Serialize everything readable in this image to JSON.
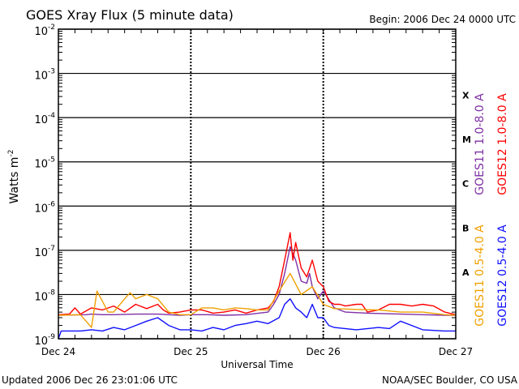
{
  "chart_data": {
    "type": "line",
    "title": "GOES Xray Flux (5 minute data)",
    "begin_label": "Begin:  2006 Dec 24 0000 UTC",
    "ylabel_main": "Watts m",
    "ylabel_exp": "-2",
    "xlabel": "Universal Time",
    "y_scale": "log",
    "ylim": [
      1e-09,
      0.01
    ],
    "xlim": [
      0,
      72
    ],
    "y_ticks": [
      {
        "value": 0.01,
        "base": "10",
        "exp": "-2"
      },
      {
        "value": 0.001,
        "base": "10",
        "exp": "-3"
      },
      {
        "value": 0.0001,
        "base": "10",
        "exp": "-4"
      },
      {
        "value": 1e-05,
        "base": "10",
        "exp": "-5"
      },
      {
        "value": 1e-06,
        "base": "10",
        "exp": "-6"
      },
      {
        "value": 1e-07,
        "base": "10",
        "exp": "-7"
      },
      {
        "value": 1e-08,
        "base": "10",
        "exp": "-8"
      },
      {
        "value": 1e-09,
        "base": "10",
        "exp": "-9"
      }
    ],
    "x_ticks": [
      {
        "hour": 0,
        "label": "Dec 24"
      },
      {
        "hour": 24,
        "label": "Dec 25"
      },
      {
        "hour": 48,
        "label": "Dec 26"
      },
      {
        "hour": 72,
        "label": "Dec 27"
      }
    ],
    "flare_classes": [
      {
        "label": "X",
        "value": 0.00032
      },
      {
        "label": "M",
        "value": 3.2e-05
      },
      {
        "label": "C",
        "value": 3.2e-06
      },
      {
        "label": "B",
        "value": 3.2e-07
      },
      {
        "label": "A",
        "value": 3.2e-08
      }
    ],
    "grid": true,
    "legend": [
      {
        "name": "GOES11 1.0-8.0 A",
        "color": "#7f2fa5"
      },
      {
        "name": "GOES12 1.0-8.0 A",
        "color": "#ff0000"
      },
      {
        "name": "GOES11 0.5-4.0 A",
        "color": "#f0a000"
      },
      {
        "name": "GOES12 0.5-4.0 A",
        "color": "#1010ff"
      }
    ],
    "series": [
      {
        "name": "GOES11 1.0-8.0 A",
        "color": "#7f2fa5",
        "x": [
          0,
          5,
          6,
          8,
          10,
          14,
          18,
          20,
          22,
          24,
          27,
          30,
          34,
          38,
          39,
          40,
          41,
          42,
          43,
          44,
          45,
          45.5,
          46,
          47,
          48,
          50,
          52,
          56,
          62,
          66,
          70,
          72
        ],
        "y": [
          3.4e-09,
          3.5e-09,
          3.6e-09,
          3.5e-09,
          3.5e-09,
          3.6e-09,
          3.6e-09,
          3.5e-09,
          3.4e-09,
          3.5e-09,
          3.5e-09,
          3.4e-09,
          3.5e-09,
          4e-09,
          6e-09,
          1e-08,
          3e-08,
          1.2e-07,
          6e-08,
          2e-08,
          1.8e-08,
          3e-08,
          1.5e-08,
          8e-09,
          1.2e-08,
          5e-09,
          4e-09,
          3.8e-09,
          3.6e-09,
          3.5e-09,
          3.4e-09,
          3.4e-09
        ]
      },
      {
        "name": "GOES12 1.0-8.0 A",
        "color": "#ff0000",
        "x": [
          0,
          2,
          3,
          4,
          6,
          8,
          10,
          12,
          14,
          16,
          18,
          19,
          20,
          22,
          24,
          26,
          28,
          30,
          32,
          34,
          36,
          38,
          39,
          40,
          41,
          42,
          42.5,
          43,
          44,
          45,
          46,
          47,
          48,
          49,
          50,
          51,
          52,
          54,
          55,
          56,
          58,
          60,
          62,
          64,
          66,
          68,
          70,
          72
        ],
        "y": [
          3.5e-09,
          3.6e-09,
          5e-09,
          3.6e-09,
          5e-09,
          4.5e-09,
          5.5e-09,
          4e-09,
          6e-09,
          4.8e-09,
          6e-09,
          4.5e-09,
          3.8e-09,
          4e-09,
          4.5e-09,
          4.5e-09,
          3.8e-09,
          4e-09,
          4.5e-09,
          3.8e-09,
          4.5e-09,
          5e-09,
          7e-09,
          1.5e-08,
          6e-08,
          2.5e-07,
          6e-08,
          1.5e-07,
          4e-08,
          2.5e-08,
          6e-08,
          2e-08,
          1.5e-08,
          7e-09,
          6e-09,
          6e-09,
          5.5e-09,
          6e-09,
          6e-09,
          4e-09,
          4.5e-09,
          6e-09,
          6e-09,
          5.5e-09,
          6e-09,
          5.5e-09,
          4e-09,
          3.5e-09
        ]
      },
      {
        "name": "GOES11 0.5-4.0 A",
        "color": "#f0a000",
        "x": [
          0,
          4,
          6,
          7,
          8,
          9,
          10,
          12,
          13,
          14,
          16,
          18,
          20,
          22,
          24,
          26,
          28,
          30,
          32,
          34,
          36,
          38,
          40,
          42,
          44,
          46,
          48,
          50,
          54,
          58,
          62,
          66,
          70,
          72
        ],
        "y": [
          3.4e-09,
          3.5e-09,
          1.8e-09,
          1.2e-08,
          7e-09,
          4e-09,
          4e-09,
          8e-09,
          1.1e-08,
          8e-09,
          1e-08,
          8e-09,
          4e-09,
          3.5e-09,
          3.5e-09,
          5e-09,
          5e-09,
          4.5e-09,
          5e-09,
          4.8e-09,
          4.5e-09,
          4.5e-09,
          1.2e-08,
          3e-08,
          1e-08,
          1.5e-08,
          6e-09,
          4.8e-09,
          4.6e-09,
          4.5e-09,
          4e-09,
          4e-09,
          3.5e-09,
          3.4e-09
        ]
      },
      {
        "name": "GOES12 0.5-4.0 A",
        "color": "#1010ff",
        "x": [
          0,
          0.5,
          1,
          4,
          6,
          8,
          10,
          12,
          14,
          16,
          18,
          20,
          22,
          24,
          26,
          28,
          30,
          32,
          34,
          36,
          38,
          40,
          41,
          42,
          43,
          44,
          45,
          46,
          47,
          48,
          49,
          50,
          54,
          58,
          60,
          62,
          64,
          66,
          70,
          72
        ],
        "y": [
          1e-09,
          1.5e-09,
          1.5e-09,
          1.5e-09,
          1.6e-09,
          1.5e-09,
          1.8e-09,
          1.6e-09,
          2e-09,
          2.5e-09,
          3e-09,
          2e-09,
          1.6e-09,
          1.6e-09,
          1.5e-09,
          1.8e-09,
          1.6e-09,
          2e-09,
          2.2e-09,
          2.5e-09,
          2.2e-09,
          3e-09,
          6e-09,
          8e-09,
          5e-09,
          4e-09,
          3e-09,
          6e-09,
          3e-09,
          3e-09,
          2e-09,
          1.8e-09,
          1.6e-09,
          1.8e-09,
          1.7e-09,
          2.5e-09,
          2e-09,
          1.6e-09,
          1.5e-09,
          1.5e-09
        ]
      }
    ]
  },
  "footer": {
    "updated": "Updated 2006 Dec 26 23:01:06 UTC",
    "credit": "NOAA/SEC Boulder, CO USA"
  }
}
